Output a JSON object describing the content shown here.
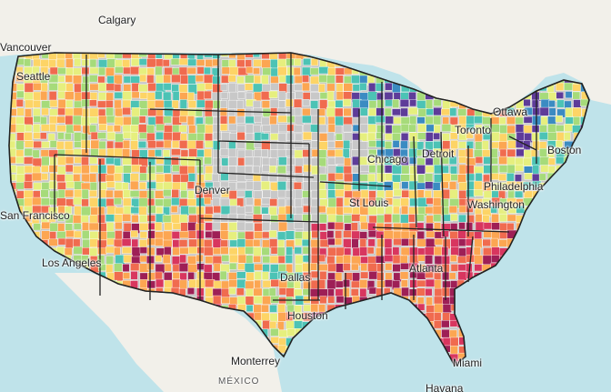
{
  "map": {
    "cities": [
      {
        "key": "calgary",
        "name": "Calgary"
      },
      {
        "key": "vancouver",
        "name": "Vancouver"
      },
      {
        "key": "seattle",
        "name": "Seattle"
      },
      {
        "key": "ottawa",
        "name": "Ottawa"
      },
      {
        "key": "toronto",
        "name": "Toronto"
      },
      {
        "key": "boston",
        "name": "Boston"
      },
      {
        "key": "chicago",
        "name": "Chicago"
      },
      {
        "key": "detroit",
        "name": "Detroit"
      },
      {
        "key": "denver",
        "name": "Denver"
      },
      {
        "key": "philadelphia",
        "name": "Philadelphia"
      },
      {
        "key": "washington",
        "name": "Washington"
      },
      {
        "key": "san_francisco",
        "name": "San Francisco"
      },
      {
        "key": "st_louis",
        "name": "St Louis"
      },
      {
        "key": "los_angeles",
        "name": "Los Angeles"
      },
      {
        "key": "atlanta",
        "name": "Atlanta"
      },
      {
        "key": "dallas",
        "name": "Dallas"
      },
      {
        "key": "houston",
        "name": "Houston"
      },
      {
        "key": "monterrey",
        "name": "Monterrey"
      },
      {
        "key": "miami",
        "name": "Miami"
      },
      {
        "key": "havana",
        "name": "Havana"
      }
    ],
    "country_label": "MÉXICO",
    "colors": {
      "water": "#bfe3ea",
      "land": "#f2f0ea",
      "no_data": "#c8c8c8",
      "scale": [
        "#5e3c99",
        "#3b8bc2",
        "#4cc3b5",
        "#a6db7a",
        "#e6ef7e",
        "#fdd466",
        "#fca652",
        "#f06b4f",
        "#d8365f",
        "#9e1f56"
      ],
      "border": "#222222"
    }
  }
}
